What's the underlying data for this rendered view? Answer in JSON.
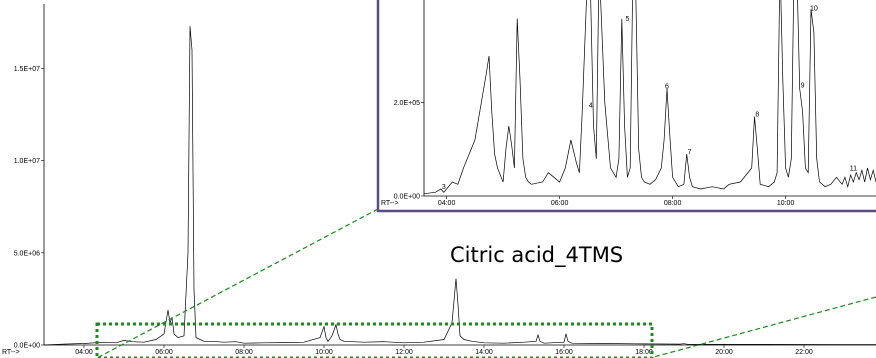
{
  "chart_data": [
    {
      "type": "line",
      "x_axis_label": "RT-->",
      "x_ticks": [
        "04:00",
        "06:00",
        "08:00",
        "10:00",
        "12:00",
        "14:00",
        "16:00",
        "18:00",
        "20:00",
        "22:00"
      ],
      "y_ticks": [
        "0.0E+00",
        "5.0E+06",
        "1.0E+07",
        "1.5E+07"
      ],
      "xlim_min": [
        3.0,
        23.8
      ],
      "ylim": [
        0,
        18500000
      ],
      "series": [
        {
          "x": [
            3.0,
            3.5,
            4.0,
            4.5,
            4.8,
            5.0,
            5.2,
            5.5,
            5.8,
            6.0,
            6.1,
            6.15,
            6.2,
            6.25,
            6.35,
            6.5,
            6.6,
            6.65,
            6.7,
            6.75,
            6.8,
            6.9,
            7.0,
            7.2,
            7.5,
            7.8,
            8.0,
            8.5,
            9.0,
            9.5,
            9.9,
            10.0,
            10.05,
            10.1,
            10.2,
            10.3,
            10.35,
            10.4,
            10.5,
            11.0,
            11.5,
            12.0,
            12.5,
            13.0,
            13.2,
            13.3,
            13.35,
            13.4,
            13.5,
            13.7,
            14.0,
            14.5,
            15.0,
            15.3,
            15.35,
            15.4,
            15.5,
            16.0,
            16.05,
            16.1,
            16.2,
            17.0,
            18.0,
            18.9,
            19.0,
            19.1,
            20.0,
            21.0,
            22.0,
            23.0,
            23.8
          ],
          "y": [
            0,
            50000,
            80000,
            150000,
            120000,
            250000,
            180000,
            150000,
            300000,
            600000,
            1900000,
            1200000,
            1500000,
            600000,
            400000,
            500000,
            5000000,
            17300000,
            16000000,
            3000000,
            400000,
            300000,
            200000,
            200000,
            150000,
            180000,
            100000,
            120000,
            130000,
            150000,
            400000,
            1000000,
            400000,
            200000,
            500000,
            1100000,
            600000,
            300000,
            200000,
            150000,
            180000,
            120000,
            150000,
            300000,
            1200000,
            3600000,
            2200000,
            500000,
            300000,
            200000,
            120000,
            100000,
            150000,
            200000,
            550000,
            200000,
            100000,
            150000,
            600000,
            200000,
            100000,
            80000,
            60000,
            50000,
            70000,
            40000,
            30000,
            30000,
            25000,
            20000,
            20000
          ]
        }
      ]
    },
    {
      "type": "line",
      "x_axis_label": "RT-->",
      "x_ticks": [
        "04:00",
        "06:00",
        "08:00",
        "10:00"
      ],
      "y_ticks": [
        "0.0E+00",
        "2.0E+05"
      ],
      "xlim_min": [
        3.6,
        11.6
      ],
      "ylim": [
        0,
        420000
      ],
      "peak_labels": [
        {
          "label": "3",
          "x": 3.95,
          "y": 15000
        },
        {
          "label": "4",
          "x": 6.55,
          "y": 190000
        },
        {
          "label": "5",
          "x": 7.2,
          "y": 375000
        },
        {
          "label": "6",
          "x": 7.9,
          "y": 230000
        },
        {
          "label": "7",
          "x": 8.3,
          "y": 90000
        },
        {
          "label": "8",
          "x": 9.5,
          "y": 170000
        },
        {
          "label": "9",
          "x": 10.3,
          "y": 232000
        },
        {
          "label": "10",
          "x": 10.5,
          "y": 398000
        },
        {
          "label": "11",
          "x": 11.2,
          "y": 55000
        }
      ],
      "series": [
        {
          "x": [
            3.6,
            3.8,
            3.9,
            3.95,
            4.0,
            4.1,
            4.2,
            4.3,
            4.5,
            4.7,
            4.75,
            4.8,
            4.85,
            4.9,
            5.0,
            5.05,
            5.1,
            5.15,
            5.2,
            5.25,
            5.3,
            5.35,
            5.4,
            5.45,
            5.5,
            5.7,
            5.8,
            5.9,
            6.0,
            6.1,
            6.2,
            6.3,
            6.35,
            6.4,
            6.5,
            6.55,
            6.6,
            6.65,
            6.7,
            6.8,
            6.9,
            7.0,
            7.05,
            7.1,
            7.15,
            7.2,
            7.25,
            7.3,
            7.35,
            7.4,
            7.45,
            7.5,
            7.6,
            7.7,
            7.8,
            7.85,
            7.9,
            7.95,
            8.0,
            8.1,
            8.2,
            8.25,
            8.3,
            8.35,
            8.5,
            8.7,
            8.9,
            9.0,
            9.2,
            9.4,
            9.45,
            9.5,
            9.55,
            9.7,
            9.8,
            9.85,
            9.9,
            9.95,
            10.0,
            10.05,
            10.1,
            10.15,
            10.2,
            10.25,
            10.3,
            10.35,
            10.4,
            10.45,
            10.5,
            10.55,
            10.6,
            10.7,
            10.8,
            10.9,
            11.0,
            11.05,
            11.1,
            11.15,
            11.2,
            11.25,
            11.3,
            11.35,
            11.4,
            11.45,
            11.5,
            11.55,
            11.6
          ],
          "y": [
            5000,
            8000,
            15000,
            8000,
            15000,
            30000,
            25000,
            60000,
            120000,
            260000,
            300000,
            180000,
            90000,
            60000,
            30000,
            100000,
            150000,
            110000,
            60000,
            380000,
            250000,
            80000,
            40000,
            30000,
            25000,
            30000,
            50000,
            40000,
            30000,
            60000,
            120000,
            70000,
            50000,
            180000,
            500000,
            420000,
            150000,
            80000,
            500000,
            200000,
            60000,
            40000,
            80000,
            380000,
            150000,
            40000,
            60000,
            500000,
            420000,
            100000,
            40000,
            30000,
            25000,
            35000,
            60000,
            120000,
            230000,
            130000,
            40000,
            20000,
            25000,
            90000,
            40000,
            20000,
            15000,
            20000,
            15000,
            25000,
            30000,
            60000,
            170000,
            100000,
            25000,
            20000,
            30000,
            50000,
            500000,
            250000,
            60000,
            40000,
            80000,
            500000,
            480000,
            230000,
            180000,
            60000,
            50000,
            400000,
            350000,
            80000,
            30000,
            20000,
            25000,
            40000,
            25000,
            40000,
            20000,
            45000,
            30000,
            50000,
            35000,
            55000,
            30000,
            60000,
            35000,
            55000,
            30000
          ]
        }
      ]
    }
  ],
  "annotation": {
    "text": "Citric acid_4TMS"
  },
  "colors": {
    "trace": "#000000",
    "highlight": "#1e8a1e",
    "inset_border": "#5e4a86"
  }
}
